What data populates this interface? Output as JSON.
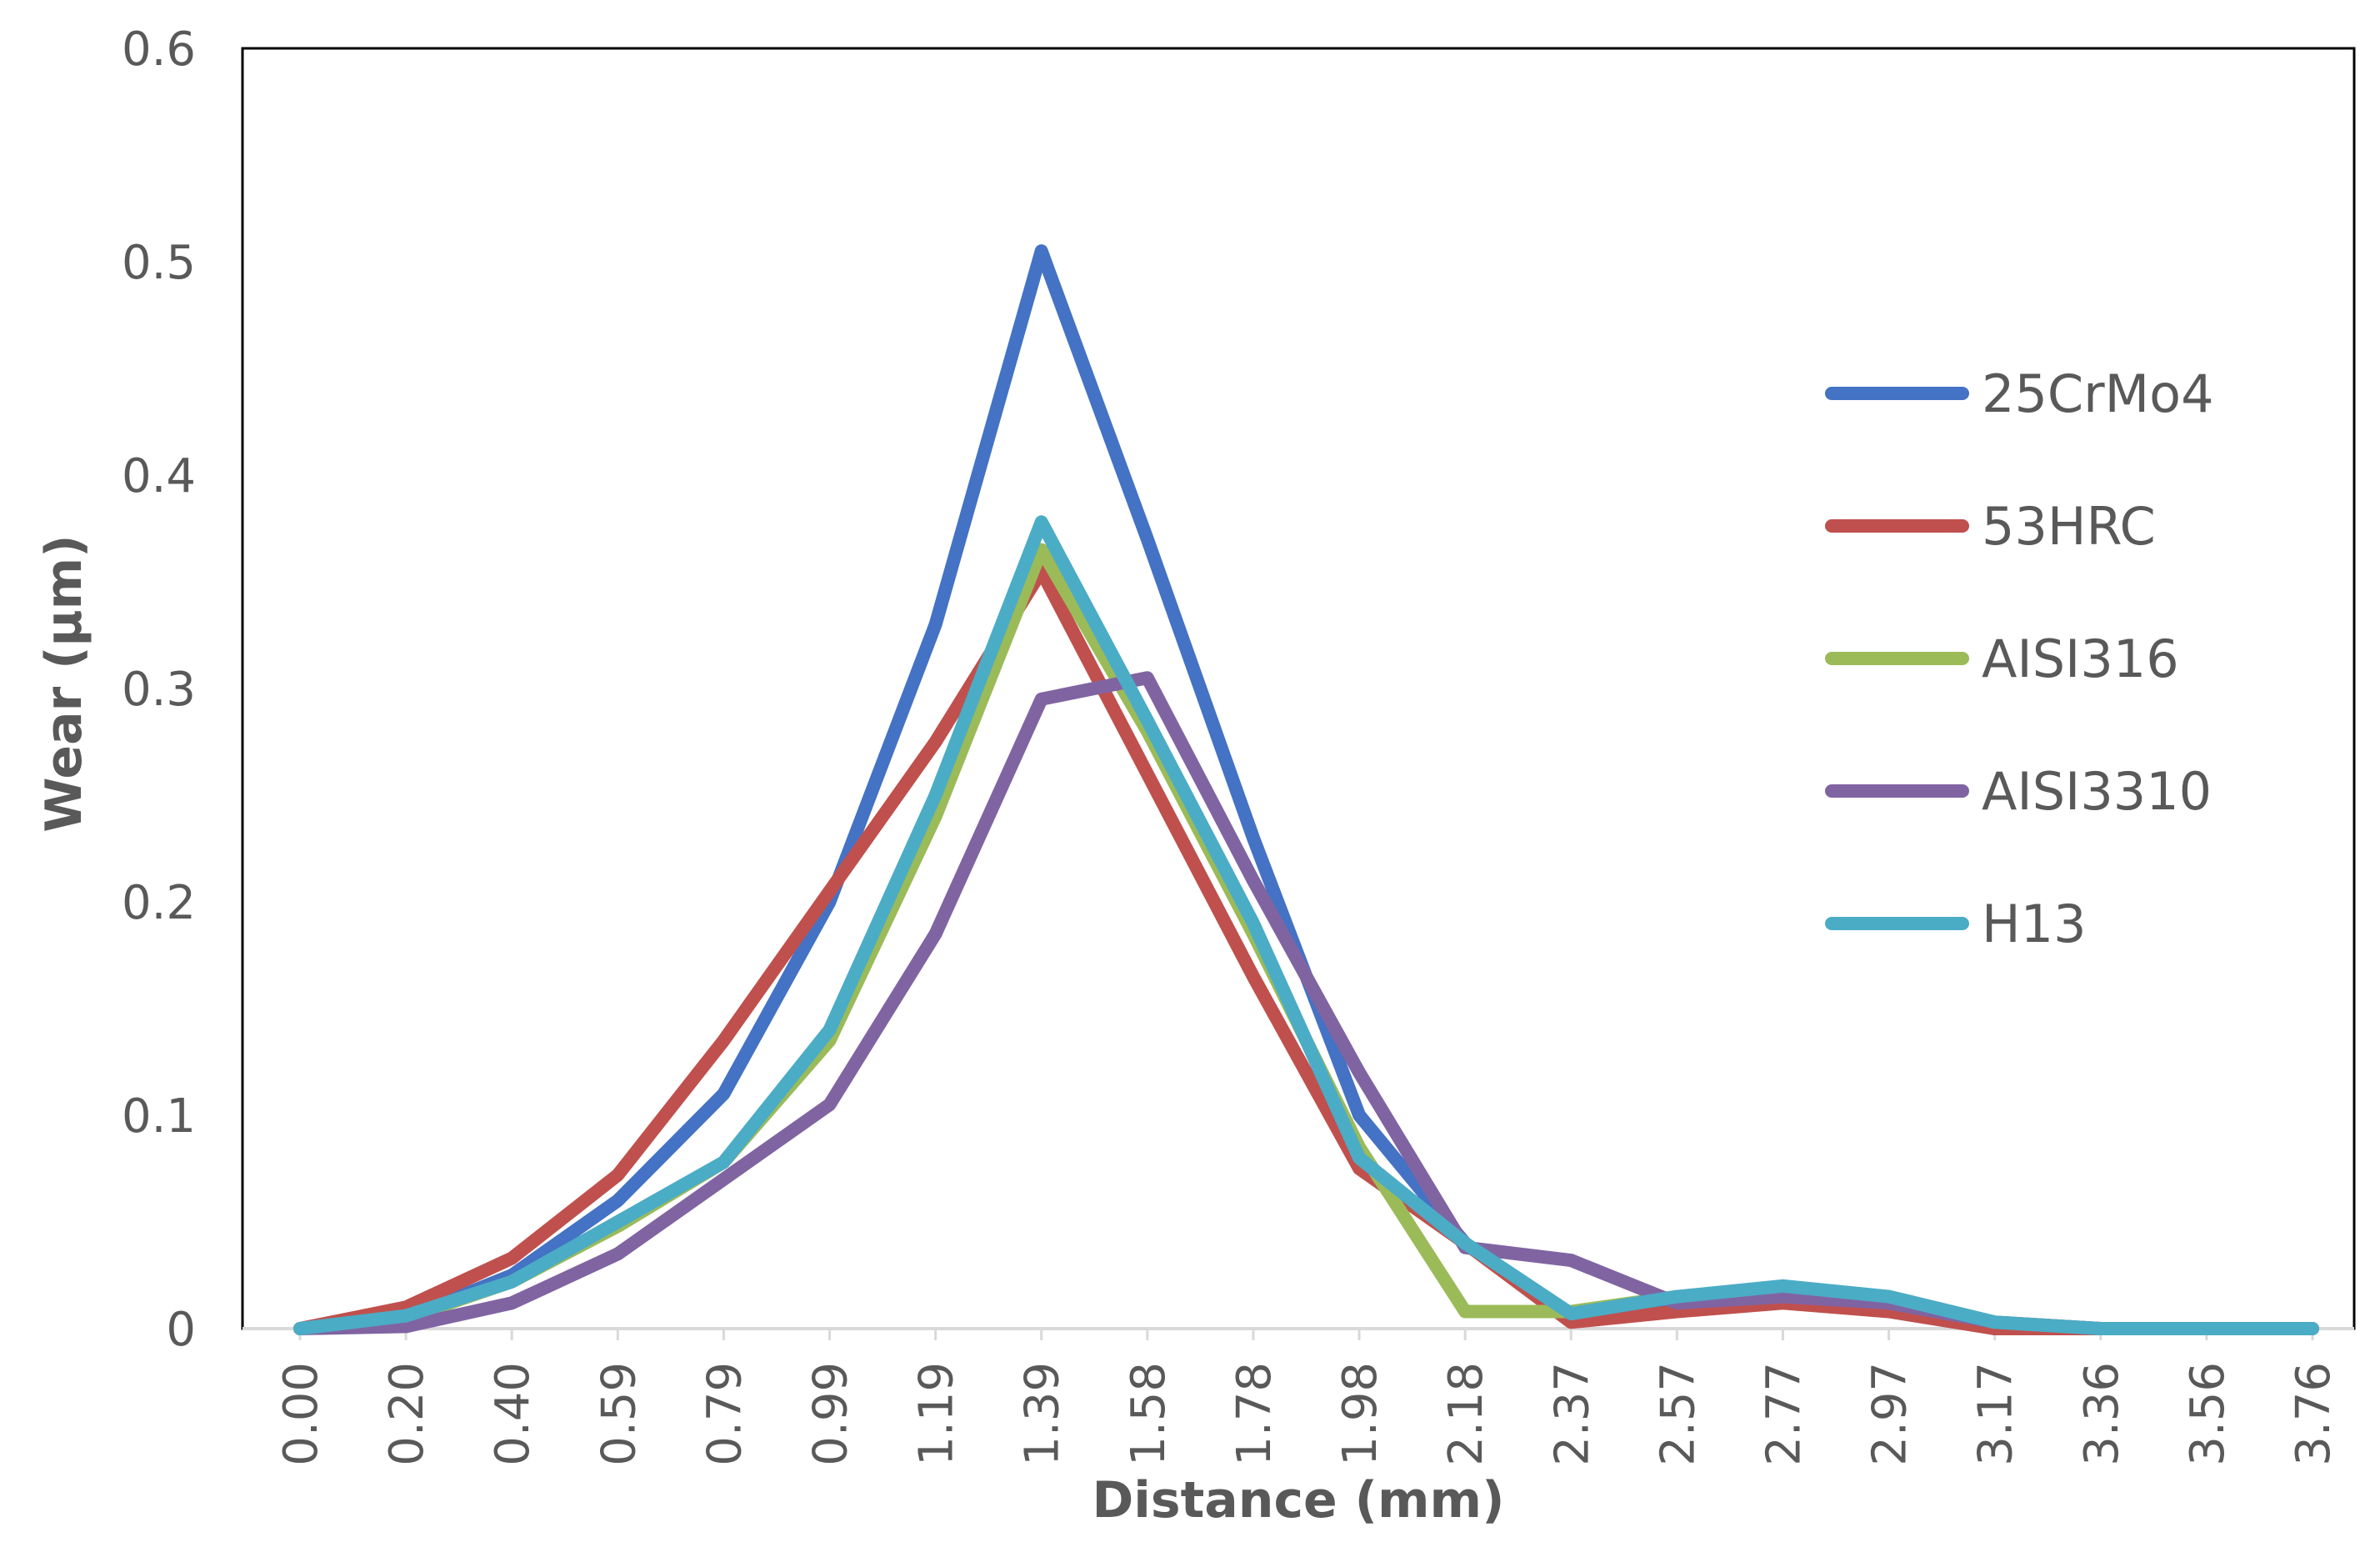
{
  "chart_data": {
    "type": "line",
    "title": "",
    "xlabel": "Distance (mm)",
    "ylabel": "Wear (µm)",
    "ylim": [
      0,
      0.6
    ],
    "yticks": [
      "0",
      "0.1",
      "0.2",
      "0.3",
      "0.4",
      "0.5",
      "0.6"
    ],
    "grid": false,
    "legend_position": "right",
    "categories": [
      "0.00",
      "0.20",
      "0.40",
      "0.59",
      "0.79",
      "0.99",
      "1.19",
      "1.39",
      "1.58",
      "1.78",
      "1.98",
      "2.18",
      "2.37",
      "2.57",
      "2.77",
      "2.97",
      "3.17",
      "3.36",
      "3.56",
      "3.76"
    ],
    "series": [
      {
        "name": "25CrMo4",
        "color": "#4472C4",
        "values": [
          0,
          0.005,
          0.025,
          0.06,
          0.11,
          0.2,
          0.33,
          0.505,
          0.37,
          0.23,
          0.1,
          0.04,
          0.005,
          0.01,
          0.015,
          0.01,
          0,
          0,
          0,
          0
        ]
      },
      {
        "name": "53HRC",
        "color": "#C0504D",
        "values": [
          0,
          0.01,
          0.033,
          0.072,
          0.135,
          0.205,
          0.275,
          0.355,
          0.26,
          0.165,
          0.075,
          0.04,
          0.003,
          0.008,
          0.012,
          0.008,
          0,
          0,
          0,
          0
        ]
      },
      {
        "name": "AISI316",
        "color": "#9BBB59",
        "values": [
          0,
          0.005,
          0.022,
          0.048,
          0.078,
          0.135,
          0.24,
          0.365,
          0.28,
          0.185,
          0.085,
          0.008,
          0.008,
          0.015,
          0.018,
          0.015,
          0.003,
          0,
          0,
          0
        ]
      },
      {
        "name": "AISI3310",
        "color": "#8064A2",
        "values": [
          0,
          0.001,
          0.012,
          0.035,
          0.07,
          0.105,
          0.185,
          0.295,
          0.305,
          0.21,
          0.12,
          0.038,
          0.032,
          0.012,
          0.015,
          0.012,
          0.003,
          0,
          0,
          0
        ]
      },
      {
        "name": "H13",
        "color": "#4BACC6",
        "values": [
          0,
          0.006,
          0.022,
          0.05,
          0.078,
          0.14,
          0.25,
          0.378,
          0.285,
          0.19,
          0.08,
          0.04,
          0.007,
          0.015,
          0.02,
          0.015,
          0.003,
          0,
          0,
          0
        ]
      }
    ]
  }
}
